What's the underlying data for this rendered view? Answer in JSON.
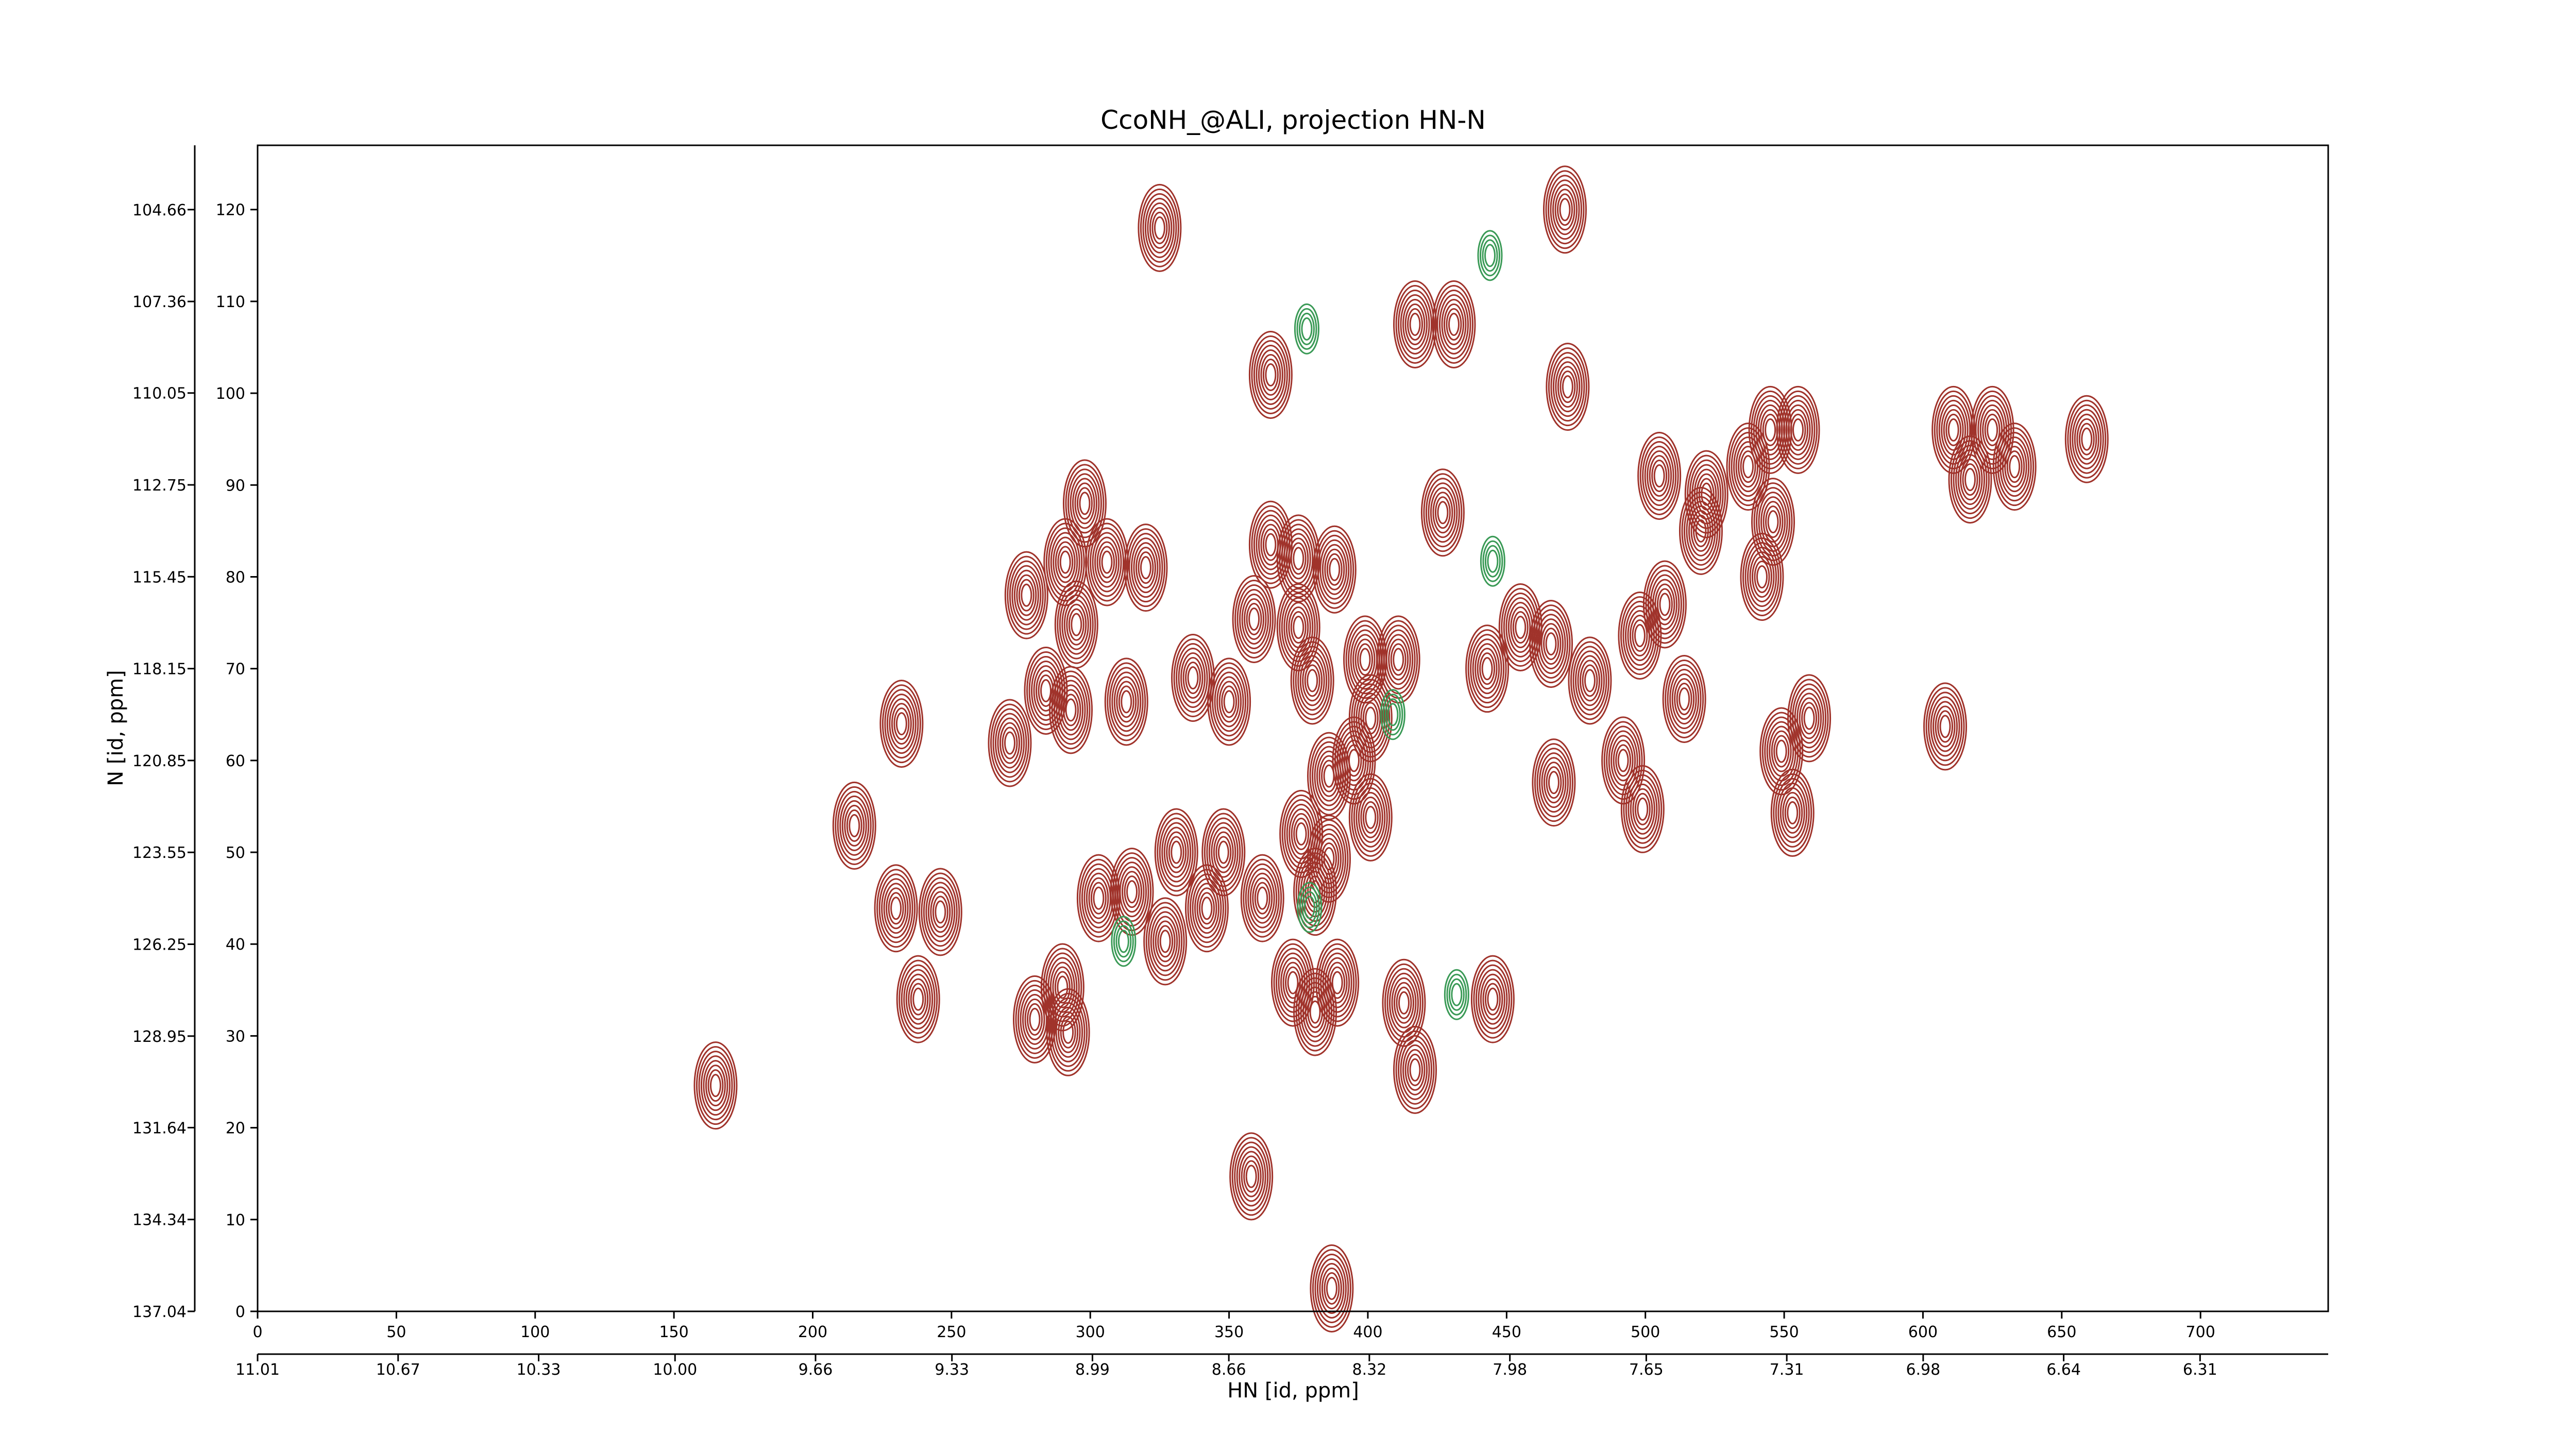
{
  "chart_data": {
    "type": "contour",
    "title": "CcoNH_@ALI, projection HN-N",
    "xlabel": "HN [id, ppm]",
    "ylabel": "N [id, ppm]",
    "xlim": [
      0,
      746
    ],
    "xticks": [
      0,
      50,
      100,
      150,
      200,
      250,
      300,
      350,
      400,
      450,
      500,
      550,
      600,
      650,
      700
    ],
    "ylim": [
      0,
      127
    ],
    "yticks": [
      0,
      10,
      20,
      30,
      40,
      50,
      60,
      70,
      80,
      90,
      100,
      110,
      120
    ],
    "x2lim": [
      11.01,
      6.0
    ],
    "x2ticks": [
      11.01,
      10.67,
      10.33,
      {
        "value": 10.0,
        "label": "10.00"
      },
      9.66,
      9.33,
      8.99,
      8.66,
      8.32,
      7.98,
      7.65,
      7.31,
      6.98,
      6.64,
      6.31
    ],
    "y2lim": [
      137.04,
      102.77
    ],
    "y2ticks": [
      137.04,
      134.34,
      131.64,
      128.95,
      126.25,
      123.55,
      120.85,
      118.15,
      115.45,
      112.75,
      110.05,
      107.36,
      104.66
    ],
    "series": [
      {
        "color": "#a0332b",
        "x": [
          325,
          471,
          365,
          417,
          431,
          472,
          505,
          522,
          537,
          545,
          555,
          611,
          625,
          617,
          633,
          659,
          427,
          298,
          291,
          306,
          320,
          277,
          365,
          375,
          388,
          520,
          546,
          542,
          507,
          498,
          295,
          359,
          375,
          455,
          466,
          399,
          411,
          443,
          480,
          284,
          293,
          313,
          337,
          350,
          380,
          401,
          514,
          232,
          271,
          559,
          608,
          549,
          395,
          386,
          492,
          467,
          499,
          553,
          215,
          401,
          376,
          331,
          348,
          386,
          362,
          303,
          315,
          342,
          381,
          230,
          246,
          327,
          373,
          389,
          290,
          280,
          292,
          381,
          413,
          445,
          238,
          417,
          165,
          358,
          387
        ],
        "y": [
          118,
          120,
          102,
          107.5,
          107.5,
          100.7,
          91,
          89,
          92,
          96,
          96,
          96,
          96,
          90.6,
          92,
          95,
          87,
          88,
          81.6,
          81.6,
          81,
          78,
          83.5,
          82,
          80.8,
          85,
          86,
          80,
          77,
          73.6,
          74.8,
          75.4,
          74.5,
          74.5,
          72.7,
          71,
          71,
          70,
          68.7,
          67.6,
          65.5,
          66.4,
          69,
          66.4,
          68.7,
          64.6,
          66.7,
          64,
          61.9,
          64.6,
          63.7,
          61,
          60,
          58.3,
          60,
          57.6,
          54.7,
          54.3,
          52.9,
          53.8,
          52,
          50,
          50,
          49.3,
          45,
          45,
          45.7,
          43.9,
          45.7,
          43.9,
          43.5,
          40.3,
          35.8,
          35.8,
          35.3,
          31.8,
          30.4,
          32.6,
          33.6,
          34,
          34,
          26.3,
          24.6,
          14.7,
          2.5
        ]
      },
      {
        "color": "#3a9a56",
        "x": [
          378,
          444,
          445,
          432,
          379,
          409,
          312
        ],
        "y": [
          107,
          115,
          81.7,
          34.5,
          44,
          65,
          40.3
        ]
      }
    ]
  }
}
